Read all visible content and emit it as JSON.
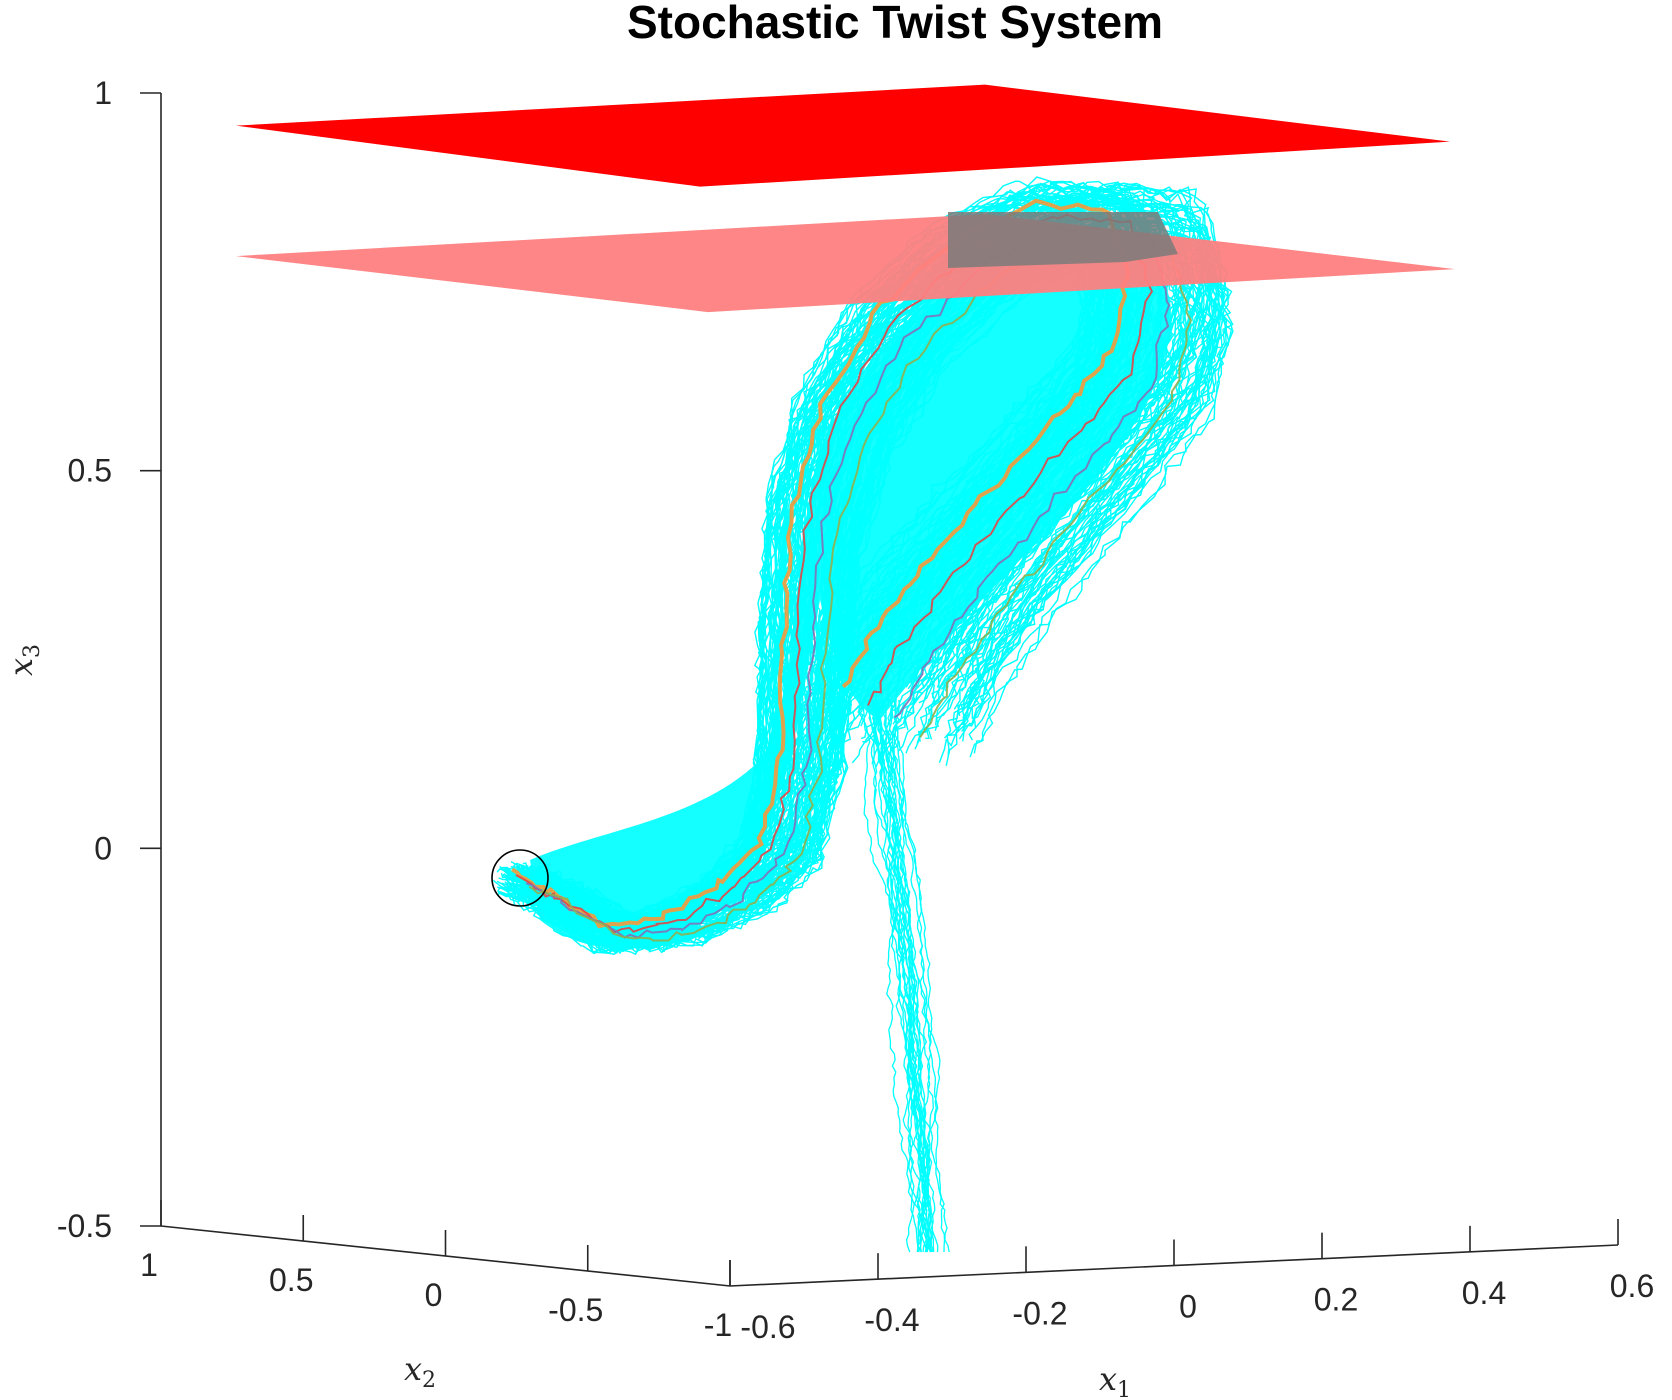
{
  "chart_data": {
    "type": "line",
    "title": "Stochastic Twist System",
    "xlabel": {
      "base": "x",
      "sub": "1"
    },
    "ylabel": {
      "base": "x",
      "sub": "2"
    },
    "zlabel": {
      "base": "x",
      "sub": "3"
    },
    "x1_ticks": [
      "-0.6",
      "-0.4",
      "-0.2",
      "0",
      "0.2",
      "0.4",
      "0.6"
    ],
    "x2_ticks": [
      "1",
      "0.5",
      "0",
      "-0.5",
      "-1"
    ],
    "x3_ticks": [
      "1",
      "0.5",
      "0",
      "-0.5"
    ],
    "xlim": [
      -0.6,
      0.6
    ],
    "ylim": [
      -1,
      1
    ],
    "zlim": [
      -0.5,
      1
    ],
    "grid": false,
    "planes": [
      {
        "name": "upper plane",
        "z": 0.97,
        "color": "#ff0000"
      },
      {
        "name": "lower plane",
        "z": 0.8,
        "color": "#ff8080"
      }
    ],
    "start_marker": {
      "shape": "circle",
      "x3": -0.04
    },
    "bundle_color": "#00ffff",
    "highlight_colors": [
      "#f59a3a",
      "#e04848",
      "#7f73b8",
      "#8fb050"
    ],
    "annotations": []
  }
}
